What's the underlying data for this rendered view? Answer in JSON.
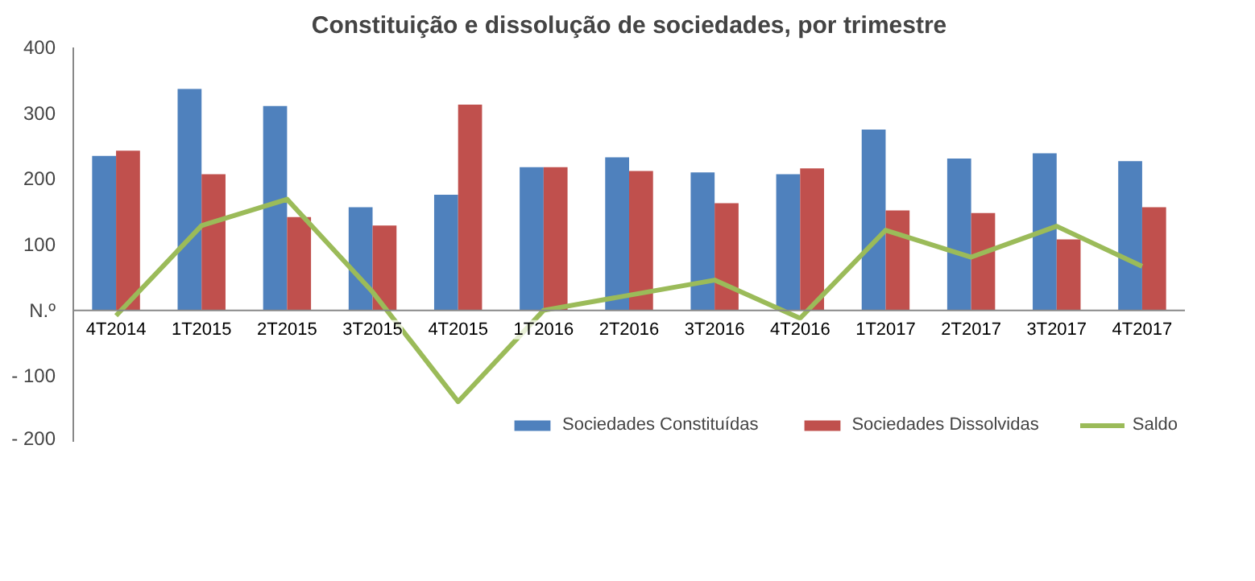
{
  "chart_data": {
    "type": "bar",
    "title": "Constituição e dissolução de sociedades, por trimestre",
    "categories": [
      "4T2014",
      "1T2015",
      "2T2015",
      "3T2015",
      "4T2015",
      "1T2016",
      "2T2016",
      "3T2016",
      "4T2016",
      "1T2017",
      "2T2017",
      "3T2017",
      "4T2017"
    ],
    "series": [
      {
        "name": "Sociedades Constituídas",
        "color": "#4f81bd",
        "values": [
          235,
          337,
          311,
          157,
          176,
          218,
          233,
          210,
          207,
          275,
          231,
          239,
          227
        ]
      },
      {
        "name": "Sociedades Dissolvidas",
        "color": "#c0504d",
        "values": [
          243,
          207,
          142,
          129,
          313,
          218,
          212,
          163,
          216,
          152,
          148,
          108,
          157
        ]
      },
      {
        "name": "Saldo",
        "type": "line",
        "color": "#9bbb59",
        "values": [
          -8,
          129,
          169,
          28,
          -139,
          0,
          23,
          46,
          -12,
          122,
          81,
          128,
          67
        ]
      }
    ],
    "ylim": [
      -200,
      400
    ],
    "yticks": [
      {
        "value": -200,
        "label": "- 200"
      },
      {
        "value": -100,
        "label": "- 100"
      },
      {
        "value": 0,
        "label": "N.º"
      },
      100,
      200,
      300,
      400
    ],
    "grid": false,
    "legend": "bottom right"
  }
}
